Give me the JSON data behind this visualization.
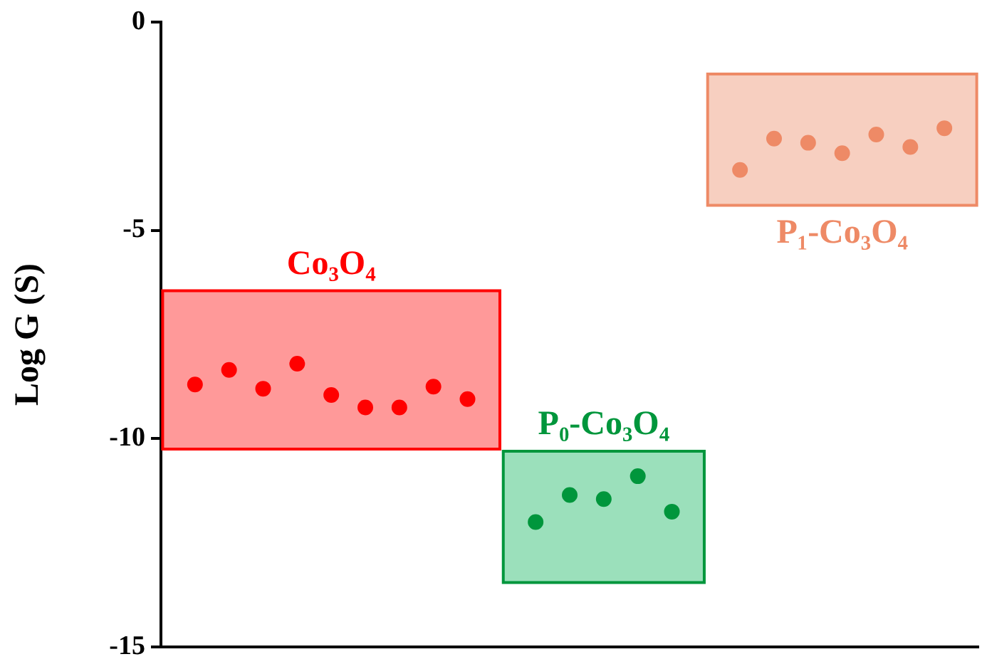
{
  "chart_data": {
    "type": "scatter",
    "ylabel": "Log G (S)",
    "categories": [
      null,
      null,
      null,
      null,
      null,
      null,
      null,
      null,
      null,
      null,
      null,
      null,
      null,
      null,
      null,
      null,
      null,
      null,
      null,
      null,
      null,
      null,
      null,
      null,
      null
    ],
    "series": [
      {
        "name": "Co₃O₄",
        "color": "#ff0000",
        "values": [
          null,
          -8.7,
          -8.35,
          -8.8,
          -8.2,
          -8.95,
          -9.25,
          -9.25,
          -8.75,
          -9.05,
          null,
          null,
          null,
          null,
          null,
          null,
          null,
          null,
          null,
          null,
          null,
          null,
          null,
          null,
          null
        ]
      },
      {
        "name": "P₀-Co₃O₄",
        "color": "#00963c",
        "values": [
          null,
          null,
          null,
          null,
          null,
          null,
          null,
          null,
          null,
          null,
          null,
          -12.0,
          -11.35,
          -11.45,
          -10.9,
          -11.75,
          null,
          null,
          null,
          null,
          null,
          null,
          null,
          null,
          null
        ]
      },
      {
        "name": "P₁-Co₃O₄",
        "color": "#ee8a66",
        "values": [
          null,
          null,
          null,
          null,
          null,
          null,
          null,
          null,
          null,
          null,
          null,
          null,
          null,
          null,
          null,
          null,
          null,
          -3.55,
          -2.8,
          -2.9,
          -3.15,
          -2.7,
          -3.0,
          -2.55,
          null
        ]
      }
    ],
    "bands": [
      {
        "axis": "y",
        "from": -10.25,
        "to": -6.45,
        "color": "#ff9999"
      },
      {
        "axis": "y",
        "from": -13.45,
        "to": -10.3,
        "color": "#9be0bb"
      },
      {
        "axis": "y",
        "from": -4.4,
        "to": -1.25,
        "color": "#f7cfc0"
      }
    ],
    "ylim": [
      -15,
      0
    ],
    "yticks": [
      0,
      -5,
      -10,
      -15
    ],
    "marker": "circle",
    "legend": false,
    "tick_labels": "y"
  }
}
